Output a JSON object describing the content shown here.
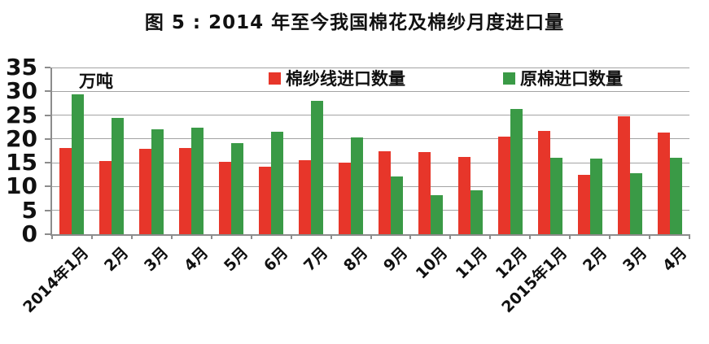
{
  "title": "图 5 : 2014 年至今我国棉花及棉纱月度进口量",
  "unit_label": "万吨",
  "colors": {
    "yarn_red": "#e7362a",
    "cotton_green": "#3a9a46",
    "axis_gray": "#8c8c8c",
    "grid_gray": "#a3a3a3"
  },
  "y_axis": {
    "ticks": [
      0,
      5,
      10,
      15,
      20,
      25,
      30,
      35
    ],
    "max": 35
  },
  "chart_data": {
    "type": "bar",
    "title": "图 5 : 2014 年至今我国棉花及棉纱月度进口量",
    "ylabel": "万吨",
    "ylim": [
      0,
      35
    ],
    "grid": true,
    "legend_position": "top-center-inside",
    "categories": [
      "2014年1月",
      "2月",
      "3月",
      "4月",
      "5月",
      "6月",
      "7月",
      "8月",
      "9月",
      "10月",
      "11月",
      "12月",
      "2015年1月",
      "2月",
      "3月",
      "4月"
    ],
    "series": [
      {
        "name": "棉纱线进口数量",
        "color": "#e7362a",
        "values": [
          18.1,
          15.3,
          17.9,
          18.1,
          15.2,
          14.1,
          15.6,
          15.0,
          17.4,
          17.3,
          16.3,
          20.5,
          21.7,
          12.4,
          24.8,
          21.3
        ]
      },
      {
        "name": "原棉进口数量",
        "color": "#3a9a46",
        "values": [
          29.3,
          24.5,
          22.1,
          22.4,
          19.2,
          21.6,
          28.0,
          20.4,
          12.2,
          8.2,
          9.2,
          26.3,
          16.1,
          15.9,
          12.8,
          16.0
        ]
      }
    ]
  }
}
